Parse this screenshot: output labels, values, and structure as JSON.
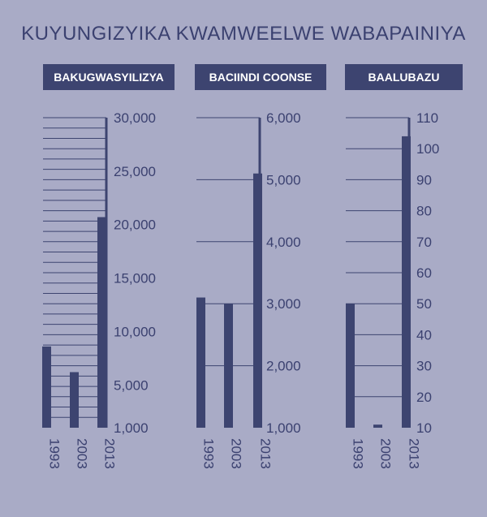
{
  "title": "KUYUNGIZYIKA KWAMWEELWE WABAPAINIYA",
  "colors": {
    "background": "#a9abc6",
    "bar": "#3d4470",
    "text": "#3b4170"
  },
  "chart_data": [
    {
      "type": "bar",
      "title": "BAKUGWASYILIZYA",
      "categories": [
        "1993",
        "2003",
        "2013"
      ],
      "values": [
        8600,
        6200,
        20700
      ],
      "ylim": [
        1000,
        30000
      ],
      "yticks": [
        "30,000",
        "25,000",
        "20,000",
        "15,000",
        "10,000",
        "5,000",
        "1,000"
      ],
      "ytick_values": [
        30000,
        25000,
        20000,
        15000,
        10000,
        5000,
        1000
      ],
      "grid": true
    },
    {
      "type": "bar",
      "title": "BACIINDI COONSE",
      "categories": [
        "1993",
        "2003",
        "2013"
      ],
      "values": [
        3100,
        3000,
        5100
      ],
      "ylim": [
        1000,
        6000
      ],
      "yticks": [
        "6,000",
        "5,000",
        "4,000",
        "3,000",
        "2,000",
        "1,000"
      ],
      "ytick_values": [
        6000,
        5000,
        4000,
        3000,
        2000,
        1000
      ],
      "grid": true
    },
    {
      "type": "bar",
      "title": "BAALUBAZU",
      "categories": [
        "1993",
        "2003",
        "2013"
      ],
      "values": [
        50,
        11,
        104
      ],
      "ylim": [
        10,
        110
      ],
      "yticks": [
        "110",
        "100",
        "90",
        "80",
        "70",
        "60",
        "50",
        "40",
        "30",
        "20",
        "10"
      ],
      "ytick_values": [
        110,
        100,
        90,
        80,
        70,
        60,
        50,
        40,
        30,
        20,
        10
      ],
      "grid": true
    }
  ]
}
